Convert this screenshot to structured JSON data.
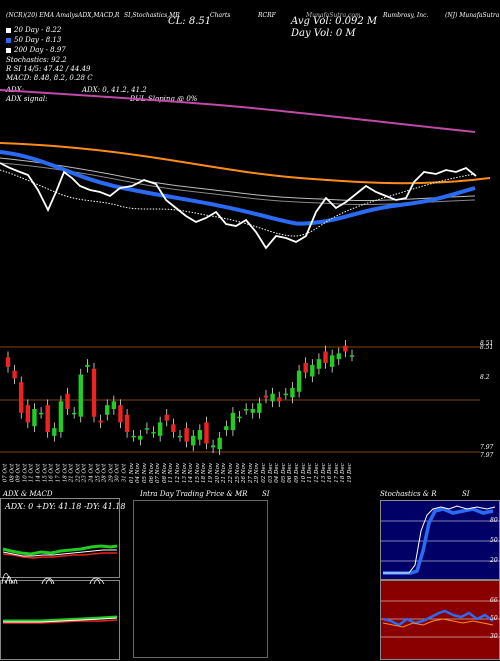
{
  "header": {
    "left_text": "(NCR)(20) EMA AmalysADX,MACD,R",
    "left_text2": "SI,Stochastics,MR",
    "charts_label": "Charts",
    "ticker": "RCRF",
    "mid_text": "MunafaSutra.com",
    "company": "Rumbrosy, Inc.",
    "right_text": "(NJ) MunafaSutra"
  },
  "stats": {
    "cl": "CL: 8.51",
    "avg_vol": "Avg Vol: 0.092  M",
    "day_vol": "Day Vol: 0  M"
  },
  "legend": [
    {
      "label": "20  Day - 8.22",
      "color": "#ffffff"
    },
    {
      "label": "50  Day - 8.13",
      "color": "#2a6bf5"
    },
    {
      "label": "200  Day - 8.97",
      "color": "#ffffff"
    }
  ],
  "indicators": {
    "stochastics": "Stochastics: 92.2",
    "rsi": "R               SI 14/5: 47.42 / 44.49",
    "macd": "MACD: 8.48, 8.2,  0.28 C",
    "adx_title": "ADX:",
    "adx_vals": "ADX: 0, 41.2, 41.2",
    "adx_signal": "ADX  signal:",
    "bull": "BUL Sloping @ 0%"
  },
  "price_labels": {
    "p1": "8.51",
    "p2": "8.51",
    "p3": "8.2",
    "p4": "7.97",
    "p5": "7.97"
  },
  "dates": [
    "07 Oct",
    "08 Oct",
    "09 Oct",
    "10 Oct",
    "11 Oct",
    "14 Oct",
    "15 Oct",
    "16 Oct",
    "17 Oct",
    "18 Oct",
    "21 Oct",
    "22 Oct",
    "23 Oct",
    "24 Oct",
    "25 Oct",
    "28 Oct",
    "29 Oct",
    "30 Oct",
    "31 Oct",
    "01 Nov",
    "04 Nov",
    "05 Nov",
    "06 Nov",
    "07 Nov",
    "08 Nov",
    "11 Nov",
    "12 Nov",
    "13 Nov",
    "14 Nov",
    "15 Nov",
    "18 Nov",
    "19 Nov",
    "20 Nov",
    "21 Nov",
    "22 Nov",
    "25 Nov",
    "26 Nov",
    "27 Nov",
    "29 Nov",
    "02 Dec",
    "03 Dec",
    "04 Dec",
    "05 Dec",
    "06 Dec",
    "09 Dec",
    "10 Dec",
    "11 Dec",
    "12 Dec",
    "13 Dec",
    "16 Dec",
    "17 Dec",
    "18 Dec",
    "19 Dec"
  ],
  "bottom": {
    "adx_macd_title": "ADX  & MACD",
    "adx_readout": "ADX: 0  +DY: 41.18  -DY: 41.18",
    "intraday_title": "Intra  Day Trading Price  & MR",
    "si1": "SI",
    "stoch_title": "Stochastics & R",
    "si2": "SI",
    "stoch_ticks": [
      "80",
      "50",
      "20"
    ],
    "rsi_ticks": [
      "66",
      "50",
      "30"
    ]
  },
  "colors": {
    "orange": "#ff8c1a",
    "magenta": "#c04aa8",
    "blue": "#2a6bf5",
    "green": "#22cc22",
    "red": "#ee2222",
    "stoch_bg": "#000066",
    "rsi_bg": "#8a0000"
  },
  "chart_data": {
    "type": "candlestick",
    "close_approx": [
      8.34,
      8.28,
      8.1,
      8.05,
      8.12,
      8.1,
      8.0,
      8.02,
      8.16,
      8.12,
      8.1,
      8.3,
      8.35,
      8.08,
      8.05,
      8.14,
      8.16,
      8.05,
      8.0,
      7.98,
      7.98,
      8.02,
      8.0,
      8.05,
      8.06,
      8.0,
      7.98,
      7.95,
      7.98,
      8.01,
      7.94,
      7.93,
      7.97,
      8.03,
      8.1,
      8.08,
      8.12,
      8.12,
      8.15,
      8.18,
      8.2,
      8.16,
      8.2,
      8.23,
      8.32,
      8.31,
      8.35,
      8.38,
      8.36,
      8.4,
      8.41,
      8.42,
      8.4
    ]
  }
}
